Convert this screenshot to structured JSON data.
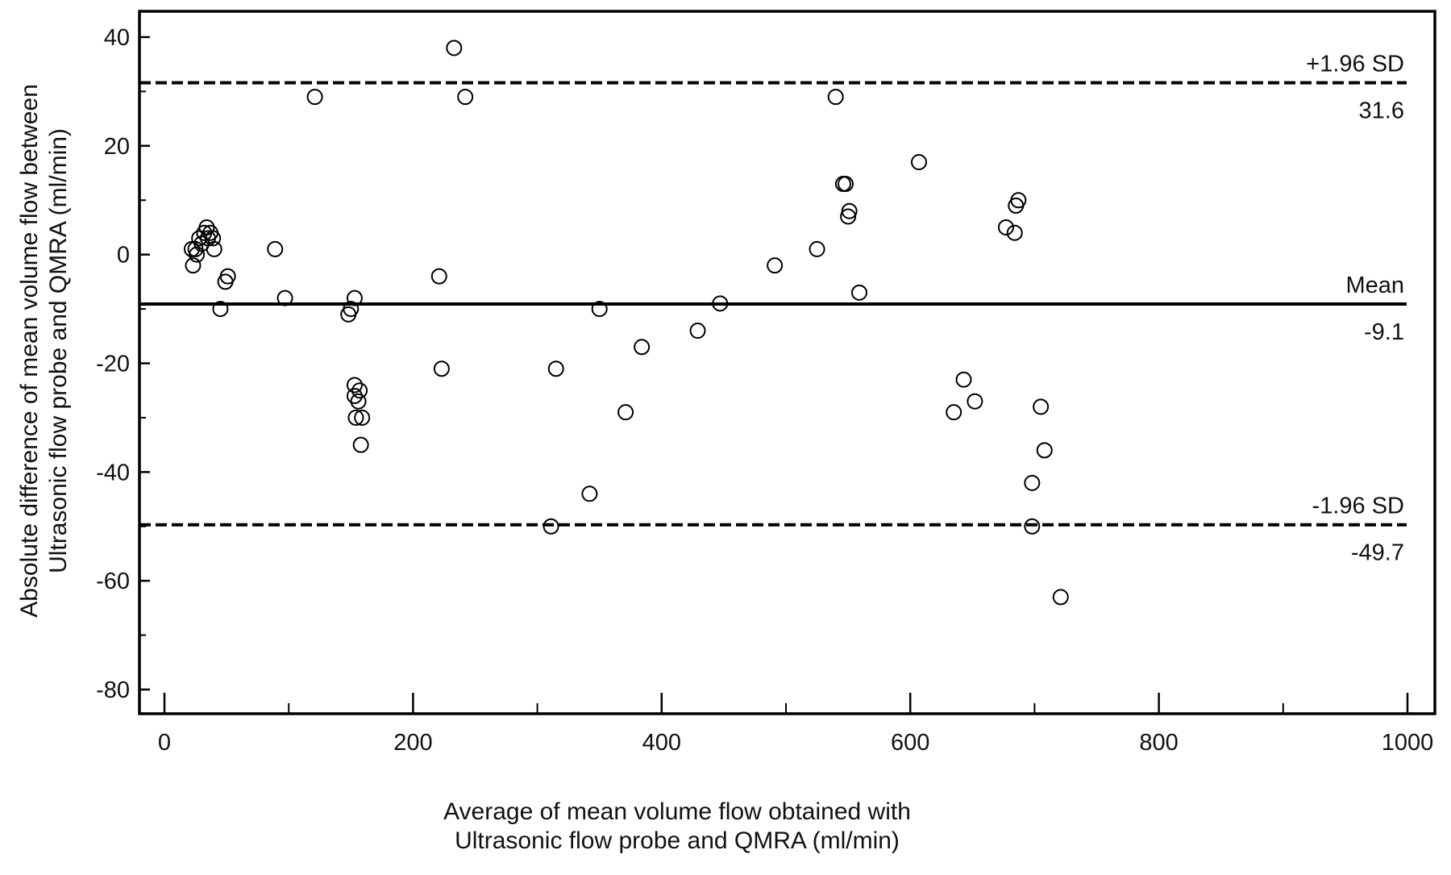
{
  "chart_data": {
    "type": "scatter",
    "title": "",
    "xlabel": [
      "Average of mean volume flow obtained with",
      "Ultrasonic flow probe and  QMRA (ml/min)"
    ],
    "ylabel": [
      "Absolute difference of mean volume flow between",
      "Ultrasonic flow probe  and QMRA (ml/min)"
    ],
    "xlim": [
      0,
      1000
    ],
    "ylim": [
      -80,
      40
    ],
    "xticks": [
      0,
      200,
      400,
      600,
      800,
      1000
    ],
    "xtick_labels": [
      "0",
      "200",
      "400",
      "600",
      "800",
      "1000"
    ],
    "yticks": [
      40,
      20,
      0,
      -20,
      -40,
      -60,
      -80
    ],
    "ytick_labels": [
      "40",
      "20",
      "0",
      "-20",
      "-40",
      "-60",
      "-80"
    ],
    "grid": false,
    "reference_lines": [
      {
        "name": "+1.96 SD",
        "value": 31.6,
        "value_label": "31.6",
        "style": "dashed"
      },
      {
        "name": "Mean",
        "value": -9.1,
        "value_label": "-9.1",
        "style": "solid"
      },
      {
        "name": "-1.96 SD",
        "value": -49.7,
        "value_label": "-49.7",
        "style": "dashed"
      }
    ],
    "series": [
      {
        "marker": "open-circle",
        "points": [
          [
            22,
            1
          ],
          [
            23,
            -2
          ],
          [
            25,
            1
          ],
          [
            26,
            0
          ],
          [
            28,
            3
          ],
          [
            30,
            2
          ],
          [
            32,
            4
          ],
          [
            34,
            5
          ],
          [
            35,
            3
          ],
          [
            37,
            4
          ],
          [
            39,
            3
          ],
          [
            40,
            1
          ],
          [
            45,
            -10
          ],
          [
            49,
            -5
          ],
          [
            51,
            -4
          ],
          [
            89,
            1
          ],
          [
            97,
            -8
          ],
          [
            121,
            29
          ],
          [
            148,
            -11
          ],
          [
            150,
            -10
          ],
          [
            153,
            -8
          ],
          [
            153,
            -24
          ],
          [
            153,
            -26
          ],
          [
            154,
            -30
          ],
          [
            156,
            -27
          ],
          [
            157,
            -25
          ],
          [
            159,
            -30
          ],
          [
            158,
            -35
          ],
          [
            221,
            -4
          ],
          [
            223,
            -21
          ],
          [
            233,
            38
          ],
          [
            242,
            29
          ],
          [
            311,
            -50
          ],
          [
            315,
            -21
          ],
          [
            342,
            -44
          ],
          [
            350,
            -10
          ],
          [
            371,
            -29
          ],
          [
            384,
            -17
          ],
          [
            429,
            -14
          ],
          [
            447,
            -9
          ],
          [
            491,
            -2
          ],
          [
            525,
            1
          ],
          [
            540,
            29
          ],
          [
            546,
            13
          ],
          [
            548,
            13
          ],
          [
            550,
            7
          ],
          [
            551,
            8
          ],
          [
            559,
            -7
          ],
          [
            607,
            17
          ],
          [
            635,
            -29
          ],
          [
            643,
            -23
          ],
          [
            652,
            -27
          ],
          [
            677,
            5
          ],
          [
            684,
            4
          ],
          [
            685,
            9
          ],
          [
            687,
            10
          ],
          [
            698,
            -42
          ],
          [
            698,
            -50
          ],
          [
            705,
            -28
          ],
          [
            708,
            -36
          ],
          [
            721,
            -63
          ]
        ]
      }
    ]
  }
}
